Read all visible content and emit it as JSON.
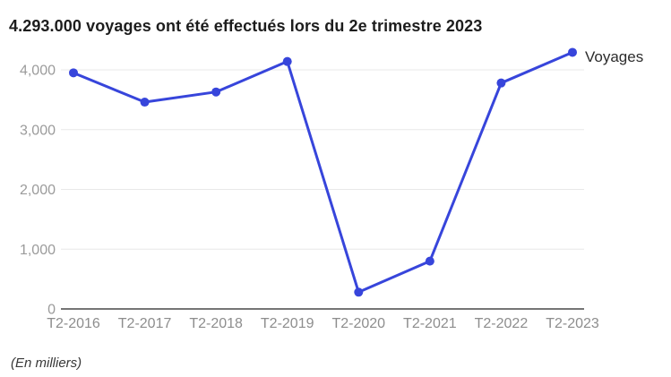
{
  "title": "4.293.000 voyages ont été effectués lors du 2e trimestre 2023",
  "footer": {
    "note": "(En milliers)"
  },
  "colors": {
    "accent": "#3745DB",
    "grid": "#e8e8e8",
    "axis": "#757575",
    "ytick_label": "#9b9b9b",
    "xtick_label": "#8d8d8d"
  },
  "chart_data": {
    "type": "line",
    "title": "4.293.000 voyages ont été effectués lors du 2e trimestre 2023",
    "categories": [
      "T2-2016",
      "T2-2017",
      "T2-2018",
      "T2-2019",
      "T2-2020",
      "T2-2021",
      "T2-2022",
      "T2-2023"
    ],
    "series": [
      {
        "name": "Voyages",
        "values": [
          3950,
          3460,
          3630,
          4140,
          280,
          800,
          3780,
          4293
        ]
      }
    ],
    "yticks": [
      {
        "value": 0,
        "label": "0"
      },
      {
        "value": 1000,
        "label": "1,000"
      },
      {
        "value": 2000,
        "label": "2,000"
      },
      {
        "value": 3000,
        "label": "3,000"
      },
      {
        "value": 4000,
        "label": "4,000"
      }
    ],
    "xlabel": "",
    "ylabel": "",
    "ylim": [
      0,
      4300
    ],
    "grid": "horizontal",
    "legend_position": "right-of-last-point",
    "unit_note": "(En milliers)",
    "marker": "circle"
  }
}
